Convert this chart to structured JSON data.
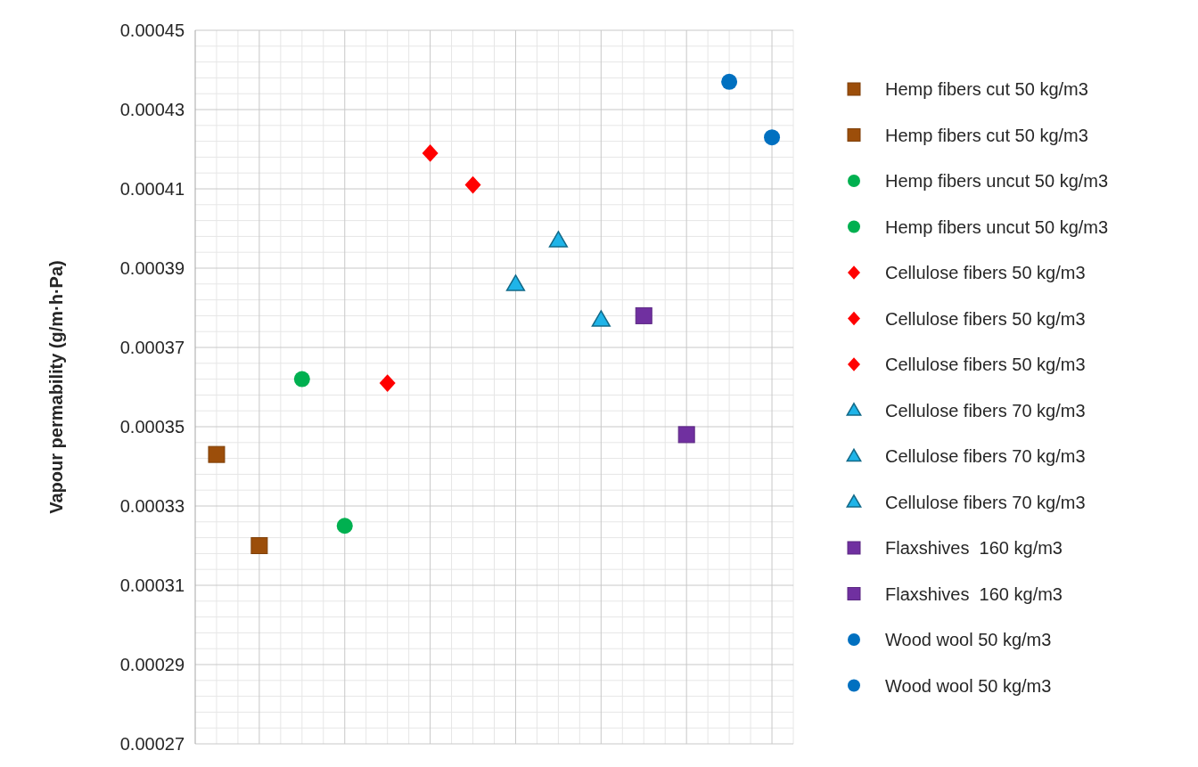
{
  "chart_data": {
    "type": "scatter",
    "ylabel": "Vapour permability (g/m·h·Pa)",
    "categories": [
      null,
      null,
      null,
      null,
      null,
      null,
      null,
      null,
      null,
      null,
      null,
      null,
      null,
      null
    ],
    "ylim": [
      0.00027,
      0.00045
    ],
    "yticks": [
      {
        "value": 0.00027,
        "label": "0.00027"
      },
      {
        "value": 0.00029,
        "label": "0.00029"
      },
      {
        "value": 0.00031,
        "label": "0.00031"
      },
      {
        "value": 0.00033,
        "label": "0.00033"
      },
      {
        "value": 0.00035,
        "label": "0.00035"
      },
      {
        "value": 0.00037,
        "label": "0.00037"
      },
      {
        "value": 0.00039,
        "label": "0.00039"
      },
      {
        "value": 0.00041,
        "label": "0.00041"
      },
      {
        "value": 0.00043,
        "label": "0.00043"
      },
      {
        "value": 0.00045,
        "label": "0.00045"
      }
    ],
    "grid": true,
    "legend": "right",
    "series": [
      {
        "name": "Hemp fibers cut 50 kg/m3",
        "color": "#9c4e0a",
        "marker": "square",
        "values": [
          0.000343,
          null,
          null,
          null,
          null,
          null,
          null,
          null,
          null,
          null,
          null,
          null,
          null,
          null
        ]
      },
      {
        "name": "Hemp fibers cut 50 kg/m3",
        "color": "#9c4e0a",
        "marker": "square",
        "values": [
          null,
          0.00032,
          null,
          null,
          null,
          null,
          null,
          null,
          null,
          null,
          null,
          null,
          null,
          null
        ]
      },
      {
        "name": "Hemp fibers uncut 50 kg/m3",
        "color": "#00b050",
        "marker": "circle",
        "values": [
          null,
          null,
          0.000362,
          null,
          null,
          null,
          null,
          null,
          null,
          null,
          null,
          null,
          null,
          null
        ]
      },
      {
        "name": "Hemp fibers uncut 50 kg/m3",
        "color": "#00b050",
        "marker": "circle",
        "values": [
          null,
          null,
          null,
          0.000325,
          null,
          null,
          null,
          null,
          null,
          null,
          null,
          null,
          null,
          null
        ]
      },
      {
        "name": "Cellulose fibers 50 kg/m3",
        "color": "#ff0000",
        "marker": "diamond",
        "values": [
          null,
          null,
          null,
          null,
          null,
          0.000419,
          null,
          null,
          null,
          null,
          null,
          null,
          null,
          null
        ]
      },
      {
        "name": "Cellulose fibers 50 kg/m3",
        "color": "#ff0000",
        "marker": "diamond",
        "values": [
          null,
          null,
          null,
          null,
          null,
          null,
          0.000411,
          null,
          null,
          null,
          null,
          null,
          null,
          null
        ]
      },
      {
        "name": "Cellulose fibers 50 kg/m3",
        "color": "#ff0000",
        "marker": "diamond",
        "values": [
          null,
          null,
          null,
          null,
          0.000361,
          null,
          null,
          null,
          null,
          null,
          null,
          null,
          null,
          null
        ]
      },
      {
        "name": "Cellulose fibers 70 kg/m3",
        "color": "#1fb4e8",
        "marker": "triangle",
        "values": [
          null,
          null,
          null,
          null,
          null,
          null,
          null,
          0.000386,
          null,
          null,
          null,
          null,
          null,
          null
        ]
      },
      {
        "name": "Cellulose fibers 70 kg/m3",
        "color": "#1fb4e8",
        "marker": "triangle",
        "values": [
          null,
          null,
          null,
          null,
          null,
          null,
          null,
          null,
          0.000397,
          null,
          null,
          null,
          null,
          null
        ]
      },
      {
        "name": "Cellulose fibers 70 kg/m3",
        "color": "#1fb4e8",
        "marker": "triangle",
        "values": [
          null,
          null,
          null,
          null,
          null,
          null,
          null,
          null,
          null,
          0.000377,
          null,
          null,
          null,
          null
        ]
      },
      {
        "name": "Flaxshives  160 kg/m3",
        "color": "#7030a0",
        "marker": "square",
        "values": [
          null,
          null,
          null,
          null,
          null,
          null,
          null,
          null,
          null,
          null,
          0.000378,
          null,
          null,
          null
        ]
      },
      {
        "name": "Flaxshives  160 kg/m3",
        "color": "#7030a0",
        "marker": "square",
        "values": [
          null,
          null,
          null,
          null,
          null,
          null,
          null,
          null,
          null,
          null,
          null,
          0.000348,
          null,
          null
        ]
      },
      {
        "name": "Wood wool 50 kg/m3",
        "color": "#0070c0",
        "marker": "circle",
        "values": [
          null,
          null,
          null,
          null,
          null,
          null,
          null,
          null,
          null,
          null,
          null,
          null,
          0.000437,
          null
        ]
      },
      {
        "name": "Wood wool 50 kg/m3",
        "color": "#0070c0",
        "marker": "circle",
        "values": [
          null,
          null,
          null,
          null,
          null,
          null,
          null,
          null,
          null,
          null,
          null,
          null,
          null,
          0.000423
        ]
      }
    ]
  }
}
